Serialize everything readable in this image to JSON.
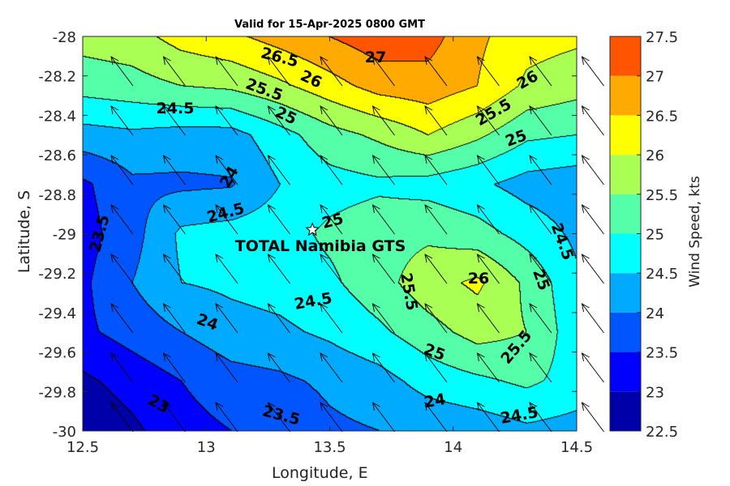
{
  "chart_data": {
    "type": "contourf",
    "title": "Valid for 15-Apr-2025 0800 GMT",
    "xlabel": "Longitude, E",
    "ylabel": "Latitude, S",
    "xlim": [
      12.5,
      14.5
    ],
    "ylim": [
      -30,
      -28
    ],
    "xticks": [
      "12.5",
      "13",
      "13.5",
      "14",
      "14.5"
    ],
    "yticks": [
      "-28",
      "-28.2",
      "-28.4",
      "-28.6",
      "-28.8",
      "-29",
      "-29.2",
      "-29.4",
      "-29.6",
      "-29.8",
      "-30"
    ],
    "grid_lon": [
      12.5,
      12.7,
      12.9,
      13.1,
      13.3,
      13.5,
      13.7,
      13.9,
      14.1,
      14.3,
      14.5
    ],
    "grid_lat": [
      -28,
      -28.25,
      -28.5,
      -28.75,
      -29,
      -29.25,
      -29.5,
      -29.75,
      -30
    ],
    "wind_speed": [
      [
        25.7,
        25.8,
        26.2,
        26.4,
        26.7,
        27.0,
        27.3,
        27.2,
        26.6,
        26.2,
        26.1
      ],
      [
        25.2,
        25.3,
        25.5,
        25.6,
        25.9,
        26.3,
        26.7,
        26.8,
        26.5,
        25.9,
        25.7
      ],
      [
        24.3,
        24.4,
        24.3,
        24.3,
        24.8,
        25.3,
        25.6,
        26.0,
        25.6,
        25.1,
        25.0
      ],
      [
        23.4,
        23.9,
        23.9,
        23.95,
        24.5,
        24.8,
        24.9,
        24.8,
        24.6,
        24.3,
        24.2
      ],
      [
        23.3,
        23.8,
        24.6,
        24.7,
        24.8,
        25.1,
        25.3,
        25.4,
        25.2,
        24.8,
        24.4
      ],
      [
        23.4,
        24.0,
        24.5,
        24.6,
        24.7,
        24.9,
        25.3,
        25.8,
        26.1,
        25.4,
        24.6
      ],
      [
        23.4,
        23.7,
        24.0,
        24.3,
        24.4,
        24.6,
        24.9,
        25.3,
        25.7,
        25.5,
        24.7
      ],
      [
        22.9,
        23.2,
        23.5,
        23.8,
        23.9,
        24.1,
        24.3,
        24.7,
        24.9,
        25.1,
        24.8
      ],
      [
        22.6,
        22.9,
        23.3,
        23.5,
        23.6,
        23.9,
        24.0,
        24.1,
        24.2,
        24.4,
        24.3
      ]
    ],
    "wind_direction": "from SE (arrows pointing NW)",
    "levels": [
      22.5,
      23,
      23.5,
      24,
      24.5,
      25,
      25.5,
      26,
      26.5,
      27,
      27.5
    ],
    "level_colors": [
      "#0000aa",
      "#0000ff",
      "#0055ff",
      "#00aaff",
      "#00ffff",
      "#55ffaa",
      "#aaff55",
      "#ffff00",
      "#ffaa00",
      "#ff5500"
    ],
    "colorbar_ticks": [
      "22.5",
      "23",
      "23.5",
      "24",
      "24.5",
      "25",
      "25.5",
      "26",
      "26.5",
      "27",
      "27.5"
    ],
    "colorbar_label": "Wind Speed, kts",
    "contour_labels": [
      "26.5",
      "27",
      "25.5",
      "26",
      "25",
      "24.5",
      "26",
      "25.5",
      "25",
      "24",
      "24.5",
      "23.5",
      "25",
      "26",
      "25.5",
      "25",
      "24.5",
      "24.5",
      "24",
      "25",
      "25.5",
      "24",
      "24.5",
      "23",
      "23.5"
    ],
    "station": {
      "name": "TOTAL Namibia GTS",
      "lon": 13.43,
      "lat": -28.98
    }
  }
}
